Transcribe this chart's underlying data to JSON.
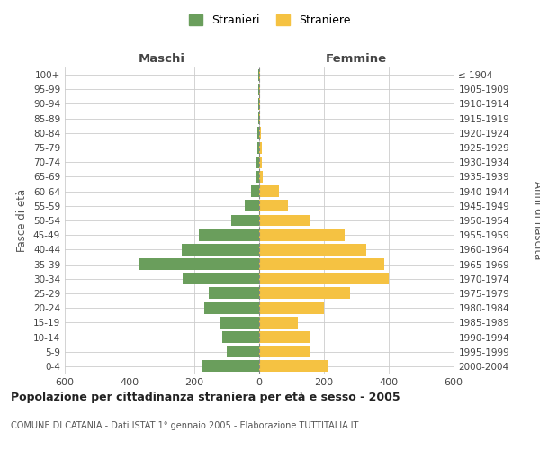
{
  "age_groups": [
    "0-4",
    "5-9",
    "10-14",
    "15-19",
    "20-24",
    "25-29",
    "30-34",
    "35-39",
    "40-44",
    "45-49",
    "50-54",
    "55-59",
    "60-64",
    "65-69",
    "70-74",
    "75-79",
    "80-84",
    "85-89",
    "90-94",
    "95-99",
    "100+"
  ],
  "birth_years": [
    "2000-2004",
    "1995-1999",
    "1990-1994",
    "1985-1989",
    "1980-1984",
    "1975-1979",
    "1970-1974",
    "1965-1969",
    "1960-1964",
    "1955-1959",
    "1950-1954",
    "1945-1949",
    "1940-1944",
    "1935-1939",
    "1930-1934",
    "1925-1929",
    "1920-1924",
    "1915-1919",
    "1910-1914",
    "1905-1909",
    "≤ 1904"
  ],
  "males": [
    175,
    100,
    115,
    120,
    170,
    155,
    235,
    370,
    240,
    185,
    85,
    45,
    25,
    12,
    8,
    6,
    5,
    4,
    3,
    2,
    2
  ],
  "females": [
    215,
    155,
    155,
    120,
    200,
    280,
    400,
    385,
    330,
    265,
    155,
    90,
    60,
    12,
    8,
    7,
    5,
    4,
    3,
    2,
    2
  ],
  "male_color": "#6a9e5c",
  "female_color": "#f5c242",
  "title": "Popolazione per cittadinanza straniera per età e sesso - 2005",
  "subtitle": "COMUNE DI CATANIA - Dati ISTAT 1° gennaio 2005 - Elaborazione TUTTITALIA.IT",
  "left_label": "Maschi",
  "right_label": "Femmine",
  "ylabel": "Fasce di età",
  "right_ylabel": "Anni di nascita",
  "legend_male": "Stranieri",
  "legend_female": "Straniere",
  "xlim": 600,
  "background_color": "#ffffff",
  "grid_color": "#cccccc"
}
